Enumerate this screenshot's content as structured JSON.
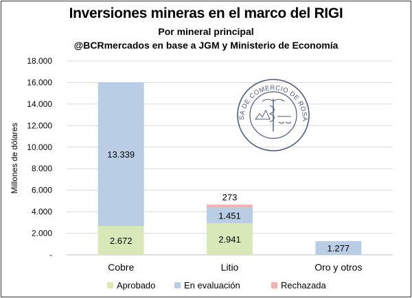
{
  "header": {
    "title": "Inversiones mineras en el marco del RIGI",
    "subtitle": "Por mineral principal",
    "source": "@BCRmercados en base a JGM y Ministerio de Economía"
  },
  "seal": {
    "text": "BOLSA DE COMERCIO DE ROSARIO",
    "color": "#4a5a78"
  },
  "chart_data": {
    "type": "bar",
    "stacked": true,
    "title": "Inversiones mineras en el marco del RIGI",
    "subtitle": "Por mineral principal",
    "ylabel": "Millones de dólares",
    "xlabel": "",
    "ylim": [
      0,
      18000
    ],
    "yticks": [
      0,
      2000,
      4000,
      6000,
      8000,
      10000,
      12000,
      14000,
      16000,
      18000
    ],
    "ytick_labels": [
      "-",
      "2.000",
      "4.000",
      "6.000",
      "8.000",
      "10.000",
      "12.000",
      "14.000",
      "16.000",
      "18.000"
    ],
    "grid": "horizontal",
    "legend_position": "bottom",
    "categories": [
      "Cobre",
      "Litio",
      "Oro y otros"
    ],
    "series": [
      {
        "name": "Aprobado",
        "color": "#d9e8b8",
        "values": [
          2672,
          2941,
          0
        ],
        "labels": [
          "2.672",
          "2.941",
          ""
        ]
      },
      {
        "name": "En evaluación",
        "color": "#b9cde5",
        "values": [
          13339,
          1451,
          1277
        ],
        "labels": [
          "13.339",
          "1.451",
          "1.277"
        ]
      },
      {
        "name": "Rechazada",
        "color": "#f2b3b0",
        "values": [
          0,
          273,
          0
        ],
        "labels": [
          "",
          "273",
          ""
        ]
      }
    ]
  }
}
